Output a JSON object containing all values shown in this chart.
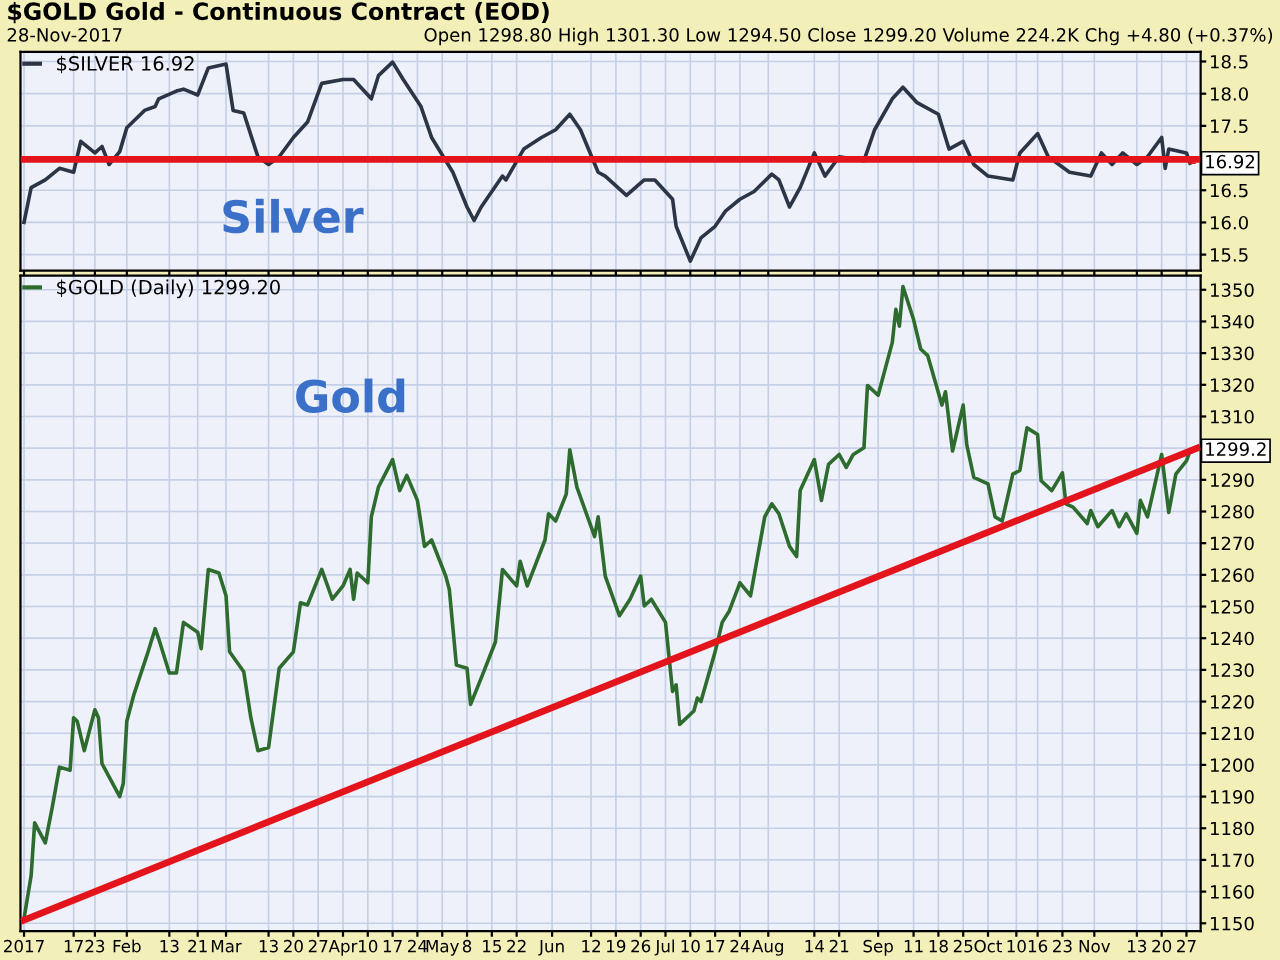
{
  "chart_data": [
    {
      "type": "line",
      "title": "$GOLD Gold - Continuous Contract (EOD)",
      "subtitle": "28-Nov-2017",
      "annotations": [
        "Silver",
        "Open 1298.80 High 1301.30 Low 1294.50 Close 1299.20 Volume 224.2K Chg +4.80 (+0.37%)",
        {
          "text": "16.92",
          "x": "2017-11-28",
          "y": 16.92
        }
      ],
      "series": [
        {
          "name": "$SILVER 16.92",
          "color": "#2b3545",
          "x": [
            "2017-01-03",
            "2017-01-05",
            "2017-01-09",
            "2017-01-13",
            "2017-01-17",
            "2017-01-19",
            "2017-01-23",
            "2017-01-25",
            "2017-01-27",
            "2017-01-30",
            "2017-02-01",
            "2017-02-06",
            "2017-02-09",
            "2017-02-10",
            "2017-02-15",
            "2017-02-17",
            "2017-02-21",
            "2017-02-24",
            "2017-03-01",
            "2017-03-03",
            "2017-03-06",
            "2017-03-10",
            "2017-03-13",
            "2017-03-16",
            "2017-03-20",
            "2017-03-24",
            "2017-03-28",
            "2017-04-03",
            "2017-04-06",
            "2017-04-11",
            "2017-04-13",
            "2017-04-17",
            "2017-04-20",
            "2017-04-25",
            "2017-04-28",
            "2017-05-04",
            "2017-05-08",
            "2017-05-10",
            "2017-05-12",
            "2017-05-18",
            "2017-05-19",
            "2017-05-24",
            "2017-05-29",
            "2017-06-02",
            "2017-06-06",
            "2017-06-09",
            "2017-06-14",
            "2017-06-16",
            "2017-06-22",
            "2017-06-27",
            "2017-06-30",
            "2017-07-05",
            "2017-07-06",
            "2017-07-10",
            "2017-07-13",
            "2017-07-17",
            "2017-07-20",
            "2017-07-24",
            "2017-07-28",
            "2017-08-02",
            "2017-08-04",
            "2017-08-07",
            "2017-08-10",
            "2017-08-14",
            "2017-08-17",
            "2017-08-21",
            "2017-08-28",
            "2017-08-31",
            "2017-09-05",
            "2017-09-08",
            "2017-09-12",
            "2017-09-18",
            "2017-09-21",
            "2017-09-25",
            "2017-09-28",
            "2017-10-02",
            "2017-10-09",
            "2017-10-11",
            "2017-10-16",
            "2017-10-19",
            "2017-10-25",
            "2017-10-31",
            "2017-11-03",
            "2017-11-06",
            "2017-11-09",
            "2017-11-13",
            "2017-11-16",
            "2017-11-20",
            "2017-11-21",
            "2017-11-22",
            "2017-11-27",
            "2017-11-28"
          ],
          "values": [
            16.0,
            16.54,
            16.66,
            16.84,
            16.78,
            17.26,
            17.08,
            17.18,
            16.9,
            17.1,
            17.47,
            17.74,
            17.8,
            17.92,
            18.04,
            18.07,
            17.98,
            18.4,
            18.46,
            17.74,
            17.7,
            17.02,
            16.9,
            17.02,
            17.32,
            17.56,
            18.16,
            18.22,
            18.22,
            17.92,
            18.28,
            18.49,
            18.22,
            17.8,
            17.32,
            16.78,
            16.24,
            16.03,
            16.24,
            16.72,
            16.66,
            17.14,
            17.32,
            17.44,
            17.68,
            17.44,
            16.78,
            16.72,
            16.42,
            16.66,
            16.66,
            16.36,
            15.94,
            15.4,
            15.76,
            15.94,
            16.18,
            16.36,
            16.48,
            16.75,
            16.66,
            16.24,
            16.54,
            17.08,
            16.72,
            17.02,
            16.96,
            17.44,
            17.92,
            18.1,
            17.86,
            17.68,
            17.14,
            17.26,
            16.9,
            16.72,
            16.66,
            17.08,
            17.38,
            17.02,
            16.78,
            16.72,
            17.08,
            16.9,
            17.08,
            16.9,
            17.02,
            17.32,
            16.84,
            17.14,
            17.08,
            16.92
          ]
        },
        {
          "color": "#e3141c",
          "x": [
            "2017-01-03",
            "2017-11-30"
          ],
          "values": [
            16.98,
            16.98
          ]
        }
      ],
      "xlim": [
        "2017-01-02",
        "2017-12-01"
      ],
      "ylim": [
        15.25,
        18.65
      ],
      "xticks": [
        {
          "value": "2017-01-03",
          "label": null
        },
        {
          "value": "2017-01-17",
          "label": null
        },
        {
          "value": "2017-01-23",
          "label": null
        },
        {
          "value": "2017-02-01",
          "label": null
        },
        {
          "value": "2017-02-13",
          "label": null
        },
        {
          "value": "2017-02-21",
          "label": null
        },
        {
          "value": "2017-03-01",
          "label": null
        },
        {
          "value": "2017-03-13",
          "label": null
        },
        {
          "value": "2017-03-20",
          "label": null
        },
        {
          "value": "2017-03-27",
          "label": null
        },
        {
          "value": "2017-04-03",
          "label": null
        },
        {
          "value": "2017-04-10",
          "label": null
        },
        {
          "value": "2017-04-17",
          "label": null
        },
        {
          "value": "2017-04-24",
          "label": null
        },
        {
          "value": "2017-05-01",
          "label": null
        },
        {
          "value": "2017-05-08",
          "label": null
        },
        {
          "value": "2017-05-15",
          "label": null
        },
        {
          "value": "2017-05-22",
          "label": null
        },
        {
          "value": "2017-06-01",
          "label": null
        },
        {
          "value": "2017-06-12",
          "label": null
        },
        {
          "value": "2017-06-19",
          "label": null
        },
        {
          "value": "2017-06-26",
          "label": null
        },
        {
          "value": "2017-07-03",
          "label": null
        },
        {
          "value": "2017-07-10",
          "label": null
        },
        {
          "value": "2017-07-17",
          "label": null
        },
        {
          "value": "2017-07-24",
          "label": null
        },
        {
          "value": "2017-08-01",
          "label": null
        },
        {
          "value": "2017-08-14",
          "label": null
        },
        {
          "value": "2017-08-21",
          "label": null
        },
        {
          "value": "2017-09-01",
          "label": null
        },
        {
          "value": "2017-09-11",
          "label": null
        },
        {
          "value": "2017-09-18",
          "label": null
        },
        {
          "value": "2017-09-25",
          "label": null
        },
        {
          "value": "2017-10-02",
          "label": null
        },
        {
          "value": "2017-10-10",
          "label": null
        },
        {
          "value": "2017-10-16",
          "label": null
        },
        {
          "value": "2017-10-23",
          "label": null
        },
        {
          "value": "2017-11-01",
          "label": null
        },
        {
          "value": "2017-11-13",
          "label": null
        },
        {
          "value": "2017-11-20",
          "label": null
        },
        {
          "value": "2017-11-27",
          "label": null
        }
      ],
      "yticks": [
        15.5,
        {
          "value": 16.0,
          "label": "16.0"
        },
        16.5,
        {
          "value": 17.0,
          "label": null
        },
        17.5,
        {
          "value": 18.0,
          "label": "18.0"
        },
        18.5
      ],
      "tick_labels": "y",
      "grid": true,
      "legend": "top left",
      "marker": "none",
      "line_style": "solid"
    },
    {
      "type": "line",
      "annotations": [
        "Gold",
        {
          "text": "1299.2",
          "x": "2017-11-28",
          "y": 1299.2
        }
      ],
      "series": [
        {
          "name": "$GOLD (Daily) 1299.20",
          "color": "#2e6b2e",
          "x": [
            "2017-01-03",
            "2017-01-05",
            "2017-01-06",
            "2017-01-09",
            "2017-01-11",
            "2017-01-13",
            "2017-01-16",
            "2017-01-17",
            "2017-01-18",
            "2017-01-20",
            "2017-01-23",
            "2017-01-24",
            "2017-01-25",
            "2017-01-30",
            "2017-01-31",
            "2017-02-01",
            "2017-02-03",
            "2017-02-07",
            "2017-02-09",
            "2017-02-10",
            "2017-02-13",
            "2017-02-15",
            "2017-02-17",
            "2017-02-21",
            "2017-02-22",
            "2017-02-24",
            "2017-02-27",
            "2017-03-01",
            "2017-03-02",
            "2017-03-06",
            "2017-03-08",
            "2017-03-10",
            "2017-03-13",
            "2017-03-16",
            "2017-03-20",
            "2017-03-22",
            "2017-03-24",
            "2017-03-28",
            "2017-03-31",
            "2017-04-03",
            "2017-04-05",
            "2017-04-06",
            "2017-04-07",
            "2017-04-10",
            "2017-04-11",
            "2017-04-13",
            "2017-04-17",
            "2017-04-19",
            "2017-04-21",
            "2017-04-24",
            "2017-04-26",
            "2017-04-28",
            "2017-05-02",
            "2017-05-03",
            "2017-05-05",
            "2017-05-08",
            "2017-05-09",
            "2017-05-12",
            "2017-05-16",
            "2017-05-18",
            "2017-05-22",
            "2017-05-23",
            "2017-05-25",
            "2017-05-30",
            "2017-05-31",
            "2017-06-02",
            "2017-06-05",
            "2017-06-06",
            "2017-06-08",
            "2017-06-12",
            "2017-06-13",
            "2017-06-14",
            "2017-06-16",
            "2017-06-20",
            "2017-06-23",
            "2017-06-26",
            "2017-06-27",
            "2017-06-28",
            "2017-06-29",
            "2017-07-03",
            "2017-07-05",
            "2017-07-06",
            "2017-07-07",
            "2017-07-11",
            "2017-07-12",
            "2017-07-13",
            "2017-07-17",
            "2017-07-19",
            "2017-07-21",
            "2017-07-24",
            "2017-07-27",
            "2017-07-31",
            "2017-08-02",
            "2017-08-04",
            "2017-08-07",
            "2017-08-09",
            "2017-08-10",
            "2017-08-14",
            "2017-08-16",
            "2017-08-18",
            "2017-08-21",
            "2017-08-23",
            "2017-08-25",
            "2017-08-28",
            "2017-08-29",
            "2017-09-01",
            "2017-09-05",
            "2017-09-06",
            "2017-09-07",
            "2017-09-08",
            "2017-09-11",
            "2017-09-13",
            "2017-09-15",
            "2017-09-19",
            "2017-09-20",
            "2017-09-22",
            "2017-09-25",
            "2017-09-26",
            "2017-09-28",
            "2017-10-02",
            "2017-10-04",
            "2017-10-06",
            "2017-10-09",
            "2017-10-11",
            "2017-10-13",
            "2017-10-16",
            "2017-10-17",
            "2017-10-20",
            "2017-10-23",
            "2017-10-24",
            "2017-10-26",
            "2017-10-30",
            "2017-10-31",
            "2017-11-02",
            "2017-11-06",
            "2017-11-08",
            "2017-11-10",
            "2017-11-13",
            "2017-11-14",
            "2017-11-16",
            "2017-11-20",
            "2017-11-22",
            "2017-11-24",
            "2017-11-27",
            "2017-11-28"
          ],
          "values": [
            1151.5,
            1165,
            1181.7,
            1175.4,
            1186.8,
            1199.3,
            1198.3,
            1214.9,
            1213.8,
            1204.5,
            1217.4,
            1214.9,
            1200.4,
            1190,
            1194.1,
            1213.8,
            1222.2,
            1235.7,
            1243,
            1239.8,
            1229,
            1229,
            1245,
            1241.9,
            1236.7,
            1261.7,
            1260.6,
            1253.4,
            1235.7,
            1229.4,
            1214.9,
            1204.5,
            1205.5,
            1230.5,
            1235.7,
            1251.2,
            1250.5,
            1261.7,
            1252.3,
            1256.5,
            1261.7,
            1252.3,
            1260.6,
            1257.5,
            1278.3,
            1287.7,
            1296.4,
            1286.6,
            1291.4,
            1283.5,
            1269,
            1271,
            1259.6,
            1255.4,
            1231.5,
            1230.5,
            1219.1,
            1227.4,
            1238.8,
            1261.7,
            1256.5,
            1264.3,
            1256.5,
            1271,
            1279.3,
            1277,
            1285.5,
            1299.5,
            1287.7,
            1275.2,
            1272.1,
            1278.3,
            1259.6,
            1247.1,
            1252.3,
            1259.6,
            1250.2,
            1251.2,
            1252.3,
            1245,
            1223.2,
            1225.3,
            1212.8,
            1217,
            1221.1,
            1220,
            1235.7,
            1245,
            1248.6,
            1257.5,
            1253.4,
            1278.3,
            1282.4,
            1279.3,
            1269,
            1265.8,
            1286.6,
            1296.4,
            1283.5,
            1294.9,
            1298,
            1293.9,
            1298,
            1300.1,
            1319.8,
            1316.7,
            1333.4,
            1343.8,
            1338.5,
            1351,
            1340.6,
            1331.3,
            1329.2,
            1313.6,
            1317.8,
            1299.1,
            1313.6,
            1301.1,
            1290.8,
            1288.7,
            1278.3,
            1277,
            1291.8,
            1293,
            1306.4,
            1304.3,
            1289.7,
            1286.6,
            1292.2,
            1282.4,
            1281.4,
            1276.2,
            1280.3,
            1275.2,
            1280.3,
            1275.2,
            1279.3,
            1273.1,
            1283.5,
            1278.3,
            1298,
            1279.7,
            1291.8,
            1296,
            1299.2
          ]
        },
        {
          "color": "#e3141c",
          "x": [
            "2017-01-03",
            "2017-11-30"
          ],
          "values": [
            1151,
            1300
          ]
        }
      ],
      "xlim": [
        "2017-01-02",
        "2017-12-01"
      ],
      "ylim": [
        1147.5,
        1354.5
      ],
      "xticks": [
        {
          "value": "2017-01-03",
          "label": "2017"
        },
        {
          "value": "2017-01-17",
          "label": "17"
        },
        {
          "value": "2017-01-23",
          "label": "23"
        },
        {
          "value": "2017-02-01",
          "label": "Feb"
        },
        {
          "value": "2017-02-13",
          "label": "13"
        },
        {
          "value": "2017-02-21",
          "label": "21"
        },
        {
          "value": "2017-03-01",
          "label": "Mar"
        },
        {
          "value": "2017-03-13",
          "label": "13"
        },
        {
          "value": "2017-03-20",
          "label": "20"
        },
        {
          "value": "2017-03-27",
          "label": "27"
        },
        {
          "value": "2017-04-03",
          "label": "Apr"
        },
        {
          "value": "2017-04-10",
          "label": "10"
        },
        {
          "value": "2017-04-17",
          "label": "17"
        },
        {
          "value": "2017-04-24",
          "label": "24"
        },
        {
          "value": "2017-05-01",
          "label": "May"
        },
        {
          "value": "2017-05-08",
          "label": "8"
        },
        {
          "value": "2017-05-15",
          "label": "15"
        },
        {
          "value": "2017-05-22",
          "label": "22"
        },
        {
          "value": "2017-06-01",
          "label": "Jun"
        },
        {
          "value": "2017-06-12",
          "label": "12"
        },
        {
          "value": "2017-06-19",
          "label": "19"
        },
        {
          "value": "2017-06-26",
          "label": "26"
        },
        {
          "value": "2017-07-03",
          "label": "Jul"
        },
        {
          "value": "2017-07-10",
          "label": "10"
        },
        {
          "value": "2017-07-17",
          "label": "17"
        },
        {
          "value": "2017-07-24",
          "label": "24"
        },
        {
          "value": "2017-08-01",
          "label": "Aug"
        },
        {
          "value": "2017-08-14",
          "label": "14"
        },
        {
          "value": "2017-08-21",
          "label": "21"
        },
        {
          "value": "2017-09-01",
          "label": "Sep"
        },
        {
          "value": "2017-09-11",
          "label": "11"
        },
        {
          "value": "2017-09-18",
          "label": "18"
        },
        {
          "value": "2017-09-25",
          "label": "25"
        },
        {
          "value": "2017-10-02",
          "label": "Oct"
        },
        {
          "value": "2017-10-10",
          "label": "10"
        },
        {
          "value": "2017-10-16",
          "label": "16"
        },
        {
          "value": "2017-10-23",
          "label": "23"
        },
        {
          "value": "2017-11-01",
          "label": "Nov"
        },
        {
          "value": "2017-11-13",
          "label": "13"
        },
        {
          "value": "2017-11-20",
          "label": "20"
        },
        {
          "value": "2017-11-27",
          "label": "27"
        }
      ],
      "yticks": [
        1150,
        1160,
        1170,
        1180,
        1190,
        1200,
        1210,
        1220,
        1230,
        1240,
        1250,
        1260,
        1270,
        1280,
        1290,
        {
          "value": 1300,
          "label": null
        },
        1310,
        1320,
        1330,
        1340,
        1350
      ],
      "grid": true,
      "legend": "top left",
      "marker": "none",
      "line_style": "solid"
    }
  ]
}
